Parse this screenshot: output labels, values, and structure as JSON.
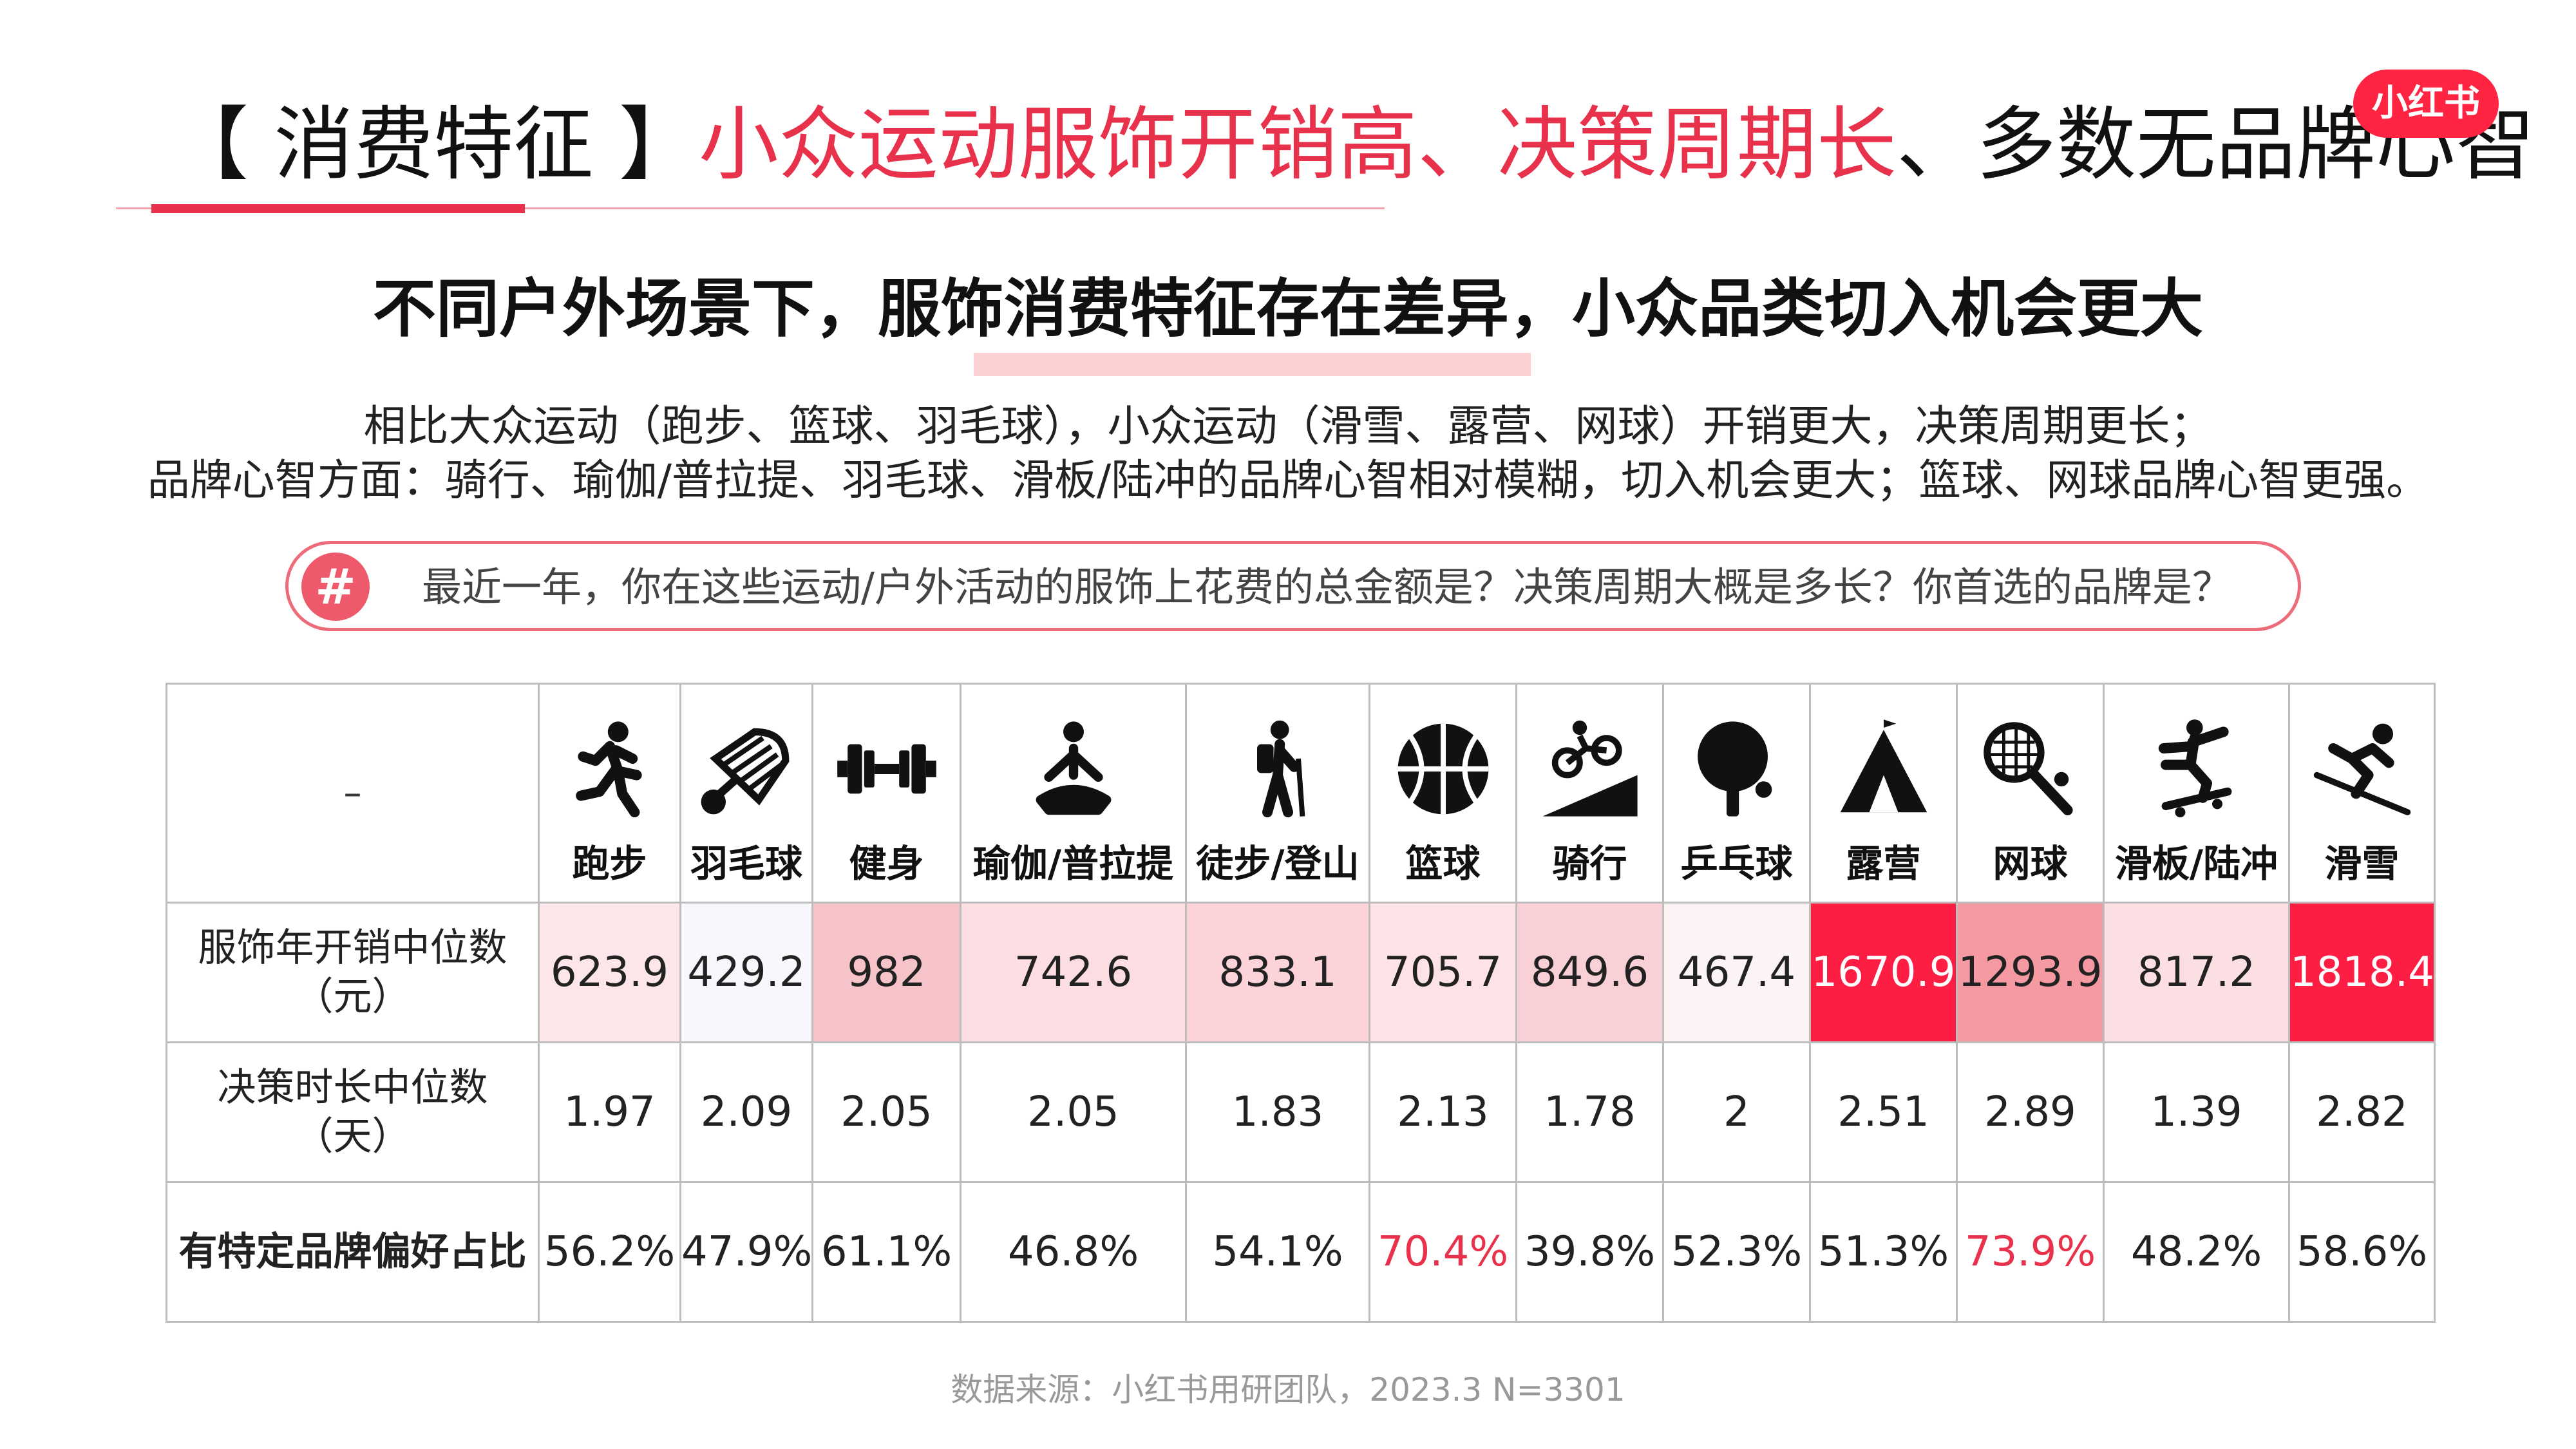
{
  "header": {
    "bracket_label": "【 消费特征 】",
    "highlight_1": "小众运动服饰开销高、决策周期长",
    "separator": "、",
    "rest": "多数无品牌心智",
    "logo": "小红书"
  },
  "subtitle": "不同户外场景下，服饰消费特征存在差异，小众品类切入机会更大",
  "description": [
    "相比大众运动（跑步、篮球、羽毛球），小众运动（滑雪、露营、网球）开销更大，决策周期更长；",
    "品牌心智方面：骑行、瑜伽/普拉提、羽毛球、滑板/陆冲的品牌心智相对模糊，切入机会更大；篮球、网球品牌心智更强。"
  ],
  "question": {
    "badge": "#",
    "text": "最近一年，你在这些运动/户外活动的服饰上花费的总金额是？决策周期大概是多长？你首选的品牌是？"
  },
  "table": {
    "corner": "–",
    "sports": [
      {
        "label": "跑步",
        "icon": "running-icon"
      },
      {
        "label": "羽毛球",
        "icon": "shuttlecock-icon"
      },
      {
        "label": "健身",
        "icon": "dumbbell-icon"
      },
      {
        "label": "瑜伽/普拉提",
        "icon": "yoga-icon"
      },
      {
        "label": "徒步/登山",
        "icon": "hiking-icon"
      },
      {
        "label": "篮球",
        "icon": "basketball-icon"
      },
      {
        "label": "骑行",
        "icon": "cycling-icon"
      },
      {
        "label": "乒乓球",
        "icon": "ping-pong-icon"
      },
      {
        "label": "露营",
        "icon": "tent-icon"
      },
      {
        "label": "网球",
        "icon": "tennis-icon"
      },
      {
        "label": "滑板/陆冲",
        "icon": "skateboard-icon"
      },
      {
        "label": "滑雪",
        "icon": "skiing-icon"
      }
    ],
    "rows": [
      {
        "label_line1": "服饰年开销中位数",
        "label_line2": "（元）",
        "values": [
          "623.9",
          "429.2",
          "982",
          "742.6",
          "833.1",
          "705.7",
          "849.6",
          "467.4",
          "1670.9",
          "1293.9",
          "817.2",
          "1818.4"
        ],
        "bg_colors": [
          "#fce6ea",
          "#f8f8fc",
          "#f6c3c9",
          "#fcdde1",
          "#fbd3d8",
          "#fde3e7",
          "#f9d0d5",
          "#fcf3f5",
          "#ff1e43",
          "#f59aa3",
          "#fcdfe3",
          "#ff1e43"
        ],
        "text_colors": [
          "#222",
          "#222",
          "#222",
          "#222",
          "#222",
          "#222",
          "#222",
          "#222",
          "#ffffff",
          "#222",
          "#222",
          "#ffffff"
        ]
      },
      {
        "label_line1": "决策时长中位数",
        "label_line2": "（天）",
        "values": [
          "1.97",
          "2.09",
          "2.05",
          "2.05",
          "1.83",
          "2.13",
          "1.78",
          "2",
          "2.51",
          "2.89",
          "1.39",
          "2.82"
        ]
      },
      {
        "label_line1": "有特定品牌偏好占比",
        "label_line2": "",
        "values": [
          "56.2%",
          "47.9%",
          "61.1%",
          "46.8%",
          "54.1%",
          "70.4%",
          "39.8%",
          "52.3%",
          "51.3%",
          "73.9%",
          "48.2%",
          "58.6%"
        ],
        "text_colors": [
          "#222",
          "#222",
          "#222",
          "#222",
          "#222",
          "#e8324b",
          "#222",
          "#222",
          "#222",
          "#e8324b",
          "#222",
          "#222"
        ]
      }
    ]
  },
  "source": "数据来源：小红书用研团队，2023.3 N=3301"
}
